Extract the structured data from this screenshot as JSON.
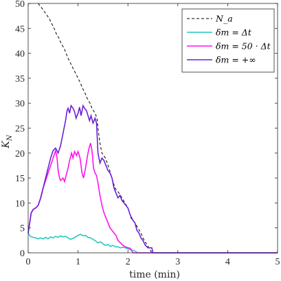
{
  "chart_data": {
    "type": "line",
    "xlabel": "time (min)",
    "ylabel": "K_N",
    "xlim": [
      0,
      5
    ],
    "ylim": [
      0,
      50
    ],
    "x_ticks": [
      "0",
      "1",
      "2",
      "3",
      "4",
      "5"
    ],
    "y_ticks": [
      "0",
      "5",
      "10",
      "15",
      "20",
      "25",
      "30",
      "35",
      "40",
      "45",
      "50"
    ],
    "grid": false,
    "legend_position": "top-right",
    "series": [
      {
        "name": "N_a",
        "legend": "N_a",
        "color": "#000000",
        "style": "dashed",
        "points": [
          [
            0.2,
            50
          ],
          [
            0.28,
            49
          ],
          [
            0.35,
            48
          ],
          [
            0.42,
            47
          ],
          [
            0.47,
            46
          ],
          [
            0.52,
            45
          ],
          [
            0.56,
            44
          ],
          [
            0.62,
            43
          ],
          [
            0.66,
            42
          ],
          [
            0.72,
            41
          ],
          [
            0.76,
            40
          ],
          [
            0.8,
            39
          ],
          [
            0.85,
            38
          ],
          [
            0.9,
            37
          ],
          [
            0.95,
            36
          ],
          [
            1.0,
            35
          ],
          [
            1.05,
            34
          ],
          [
            1.09,
            33
          ],
          [
            1.14,
            32
          ],
          [
            1.18,
            31
          ],
          [
            1.24,
            30
          ],
          [
            1.28,
            29
          ],
          [
            1.34,
            28
          ],
          [
            1.38,
            27
          ],
          [
            1.4,
            25
          ],
          [
            1.44,
            22
          ],
          [
            1.48,
            20
          ],
          [
            1.55,
            19
          ],
          [
            1.62,
            17
          ],
          [
            1.68,
            15
          ],
          [
            1.74,
            13
          ],
          [
            1.82,
            12
          ],
          [
            1.88,
            11
          ],
          [
            1.94,
            10
          ],
          [
            2.0,
            9
          ],
          [
            2.06,
            7
          ],
          [
            2.14,
            6
          ],
          [
            2.2,
            5
          ],
          [
            2.26,
            4
          ],
          [
            2.3,
            3
          ],
          [
            2.36,
            2
          ],
          [
            2.42,
            1
          ],
          [
            2.48,
            0
          ],
          [
            5.0,
            0
          ]
        ]
      },
      {
        "name": "dm=dt",
        "legend": "δm = Δt",
        "color": "#22c9c0",
        "style": "solid",
        "points": [
          [
            0.0,
            4.0
          ],
          [
            0.04,
            3.3
          ],
          [
            0.1,
            3.1
          ],
          [
            0.15,
            3.0
          ],
          [
            0.2,
            2.8
          ],
          [
            0.25,
            3.0
          ],
          [
            0.3,
            2.8
          ],
          [
            0.35,
            3.1
          ],
          [
            0.4,
            2.8
          ],
          [
            0.45,
            3.2
          ],
          [
            0.5,
            3.0
          ],
          [
            0.55,
            3.3
          ],
          [
            0.6,
            3.1
          ],
          [
            0.65,
            3.4
          ],
          [
            0.7,
            3.2
          ],
          [
            0.75,
            3.3
          ],
          [
            0.8,
            3.0
          ],
          [
            0.85,
            2.7
          ],
          [
            0.9,
            2.9
          ],
          [
            0.95,
            3.2
          ],
          [
            1.0,
            3.5
          ],
          [
            1.05,
            3.7
          ],
          [
            1.1,
            3.4
          ],
          [
            1.15,
            3.5
          ],
          [
            1.2,
            3.1
          ],
          [
            1.25,
            3.0
          ],
          [
            1.3,
            2.7
          ],
          [
            1.35,
            2.4
          ],
          [
            1.4,
            2.0
          ],
          [
            1.45,
            2.2
          ],
          [
            1.5,
            1.8
          ],
          [
            1.55,
            1.5
          ],
          [
            1.6,
            1.7
          ],
          [
            1.65,
            1.3
          ],
          [
            1.7,
            1.5
          ],
          [
            1.75,
            1.2
          ],
          [
            1.8,
            1.2
          ],
          [
            1.85,
            1.0
          ],
          [
            1.9,
            1.1
          ],
          [
            1.95,
            1.0
          ],
          [
            2.0,
            0.8
          ],
          [
            2.05,
            0.6
          ],
          [
            2.1,
            0.5
          ],
          [
            2.15,
            0.3
          ],
          [
            2.2,
            0.0
          ],
          [
            5.0,
            0.0
          ]
        ]
      },
      {
        "name": "dm=50dt",
        "legend": "δm = 50 · Δt",
        "color": "#ff10f0",
        "style": "solid",
        "points": [
          [
            0.0,
            4.0
          ],
          [
            0.03,
            6.0
          ],
          [
            0.06,
            8.0
          ],
          [
            0.1,
            8.7
          ],
          [
            0.15,
            9.0
          ],
          [
            0.2,
            9.5
          ],
          [
            0.25,
            11.0
          ],
          [
            0.3,
            13.0
          ],
          [
            0.35,
            14.5
          ],
          [
            0.4,
            16.0
          ],
          [
            0.45,
            17.5
          ],
          [
            0.5,
            19.0
          ],
          [
            0.55,
            20.5
          ],
          [
            0.58,
            19.0
          ],
          [
            0.6,
            16.5
          ],
          [
            0.63,
            15.0
          ],
          [
            0.65,
            14.5
          ],
          [
            0.7,
            15.0
          ],
          [
            0.73,
            14.3
          ],
          [
            0.76,
            15.5
          ],
          [
            0.8,
            17.0
          ],
          [
            0.83,
            18.5
          ],
          [
            0.87,
            20.0
          ],
          [
            0.9,
            19.0
          ],
          [
            0.93,
            20.3
          ],
          [
            0.97,
            19.5
          ],
          [
            1.0,
            20.3
          ],
          [
            1.04,
            19.0
          ],
          [
            1.08,
            16.0
          ],
          [
            1.11,
            15.0
          ],
          [
            1.15,
            17.0
          ],
          [
            1.19,
            19.5
          ],
          [
            1.22,
            21.0
          ],
          [
            1.25,
            22.0
          ],
          [
            1.28,
            20.5
          ],
          [
            1.31,
            17.0
          ],
          [
            1.34,
            16.0
          ],
          [
            1.37,
            15.5
          ],
          [
            1.4,
            14.0
          ],
          [
            1.44,
            11.5
          ],
          [
            1.48,
            9.5
          ],
          [
            1.52,
            8.0
          ],
          [
            1.56,
            7.0
          ],
          [
            1.6,
            6.0
          ],
          [
            1.64,
            5.0
          ],
          [
            1.68,
            4.5
          ],
          [
            1.72,
            4.0
          ],
          [
            1.76,
            3.5
          ],
          [
            1.8,
            2.5
          ],
          [
            1.85,
            2.0
          ],
          [
            1.9,
            1.5
          ],
          [
            1.95,
            1.2
          ],
          [
            2.0,
            1.0
          ],
          [
            2.05,
            0.9
          ],
          [
            2.1,
            0.0
          ],
          [
            5.0,
            0.0
          ]
        ]
      },
      {
        "name": "dm=inf",
        "legend": "δm = +∞",
        "color": "#6a1fd8",
        "style": "solid",
        "points": [
          [
            0.0,
            4.0
          ],
          [
            0.03,
            6.0
          ],
          [
            0.06,
            8.0
          ],
          [
            0.1,
            8.7
          ],
          [
            0.15,
            9.0
          ],
          [
            0.2,
            9.5
          ],
          [
            0.25,
            11.0
          ],
          [
            0.3,
            13.0
          ],
          [
            0.35,
            15.0
          ],
          [
            0.4,
            17.0
          ],
          [
            0.45,
            19.0
          ],
          [
            0.5,
            20.5
          ],
          [
            0.55,
            21.0
          ],
          [
            0.6,
            20.0
          ],
          [
            0.65,
            21.5
          ],
          [
            0.7,
            24.0
          ],
          [
            0.75,
            26.5
          ],
          [
            0.78,
            28.5
          ],
          [
            0.8,
            29.0
          ],
          [
            0.83,
            28.0
          ],
          [
            0.86,
            29.5
          ],
          [
            0.9,
            29.0
          ],
          [
            0.93,
            28.3
          ],
          [
            0.96,
            27.0
          ],
          [
            1.0,
            28.0
          ],
          [
            1.03,
            29.2
          ],
          [
            1.06,
            27.5
          ],
          [
            1.1,
            29.5
          ],
          [
            1.13,
            29.0
          ],
          [
            1.17,
            28.5
          ],
          [
            1.2,
            27.5
          ],
          [
            1.23,
            26.5
          ],
          [
            1.26,
            27.5
          ],
          [
            1.3,
            26.0
          ],
          [
            1.34,
            27.0
          ],
          [
            1.37,
            26.0
          ],
          [
            1.4,
            20.0
          ],
          [
            1.44,
            18.0
          ],
          [
            1.48,
            19.0
          ],
          [
            1.52,
            18.5
          ],
          [
            1.56,
            17.5
          ],
          [
            1.6,
            16.5
          ],
          [
            1.64,
            16.0
          ],
          [
            1.68,
            15.0
          ],
          [
            1.72,
            13.0
          ],
          [
            1.76,
            12.0
          ],
          [
            1.8,
            11.0
          ],
          [
            1.84,
            11.5
          ],
          [
            1.88,
            10.5
          ],
          [
            1.92,
            10.0
          ],
          [
            1.96,
            9.5
          ],
          [
            2.0,
            9.0
          ],
          [
            2.05,
            7.5
          ],
          [
            2.1,
            6.5
          ],
          [
            2.14,
            6.0
          ],
          [
            2.18,
            4.5
          ],
          [
            2.22,
            4.0
          ],
          [
            2.26,
            3.0
          ],
          [
            2.3,
            2.5
          ],
          [
            2.35,
            1.5
          ],
          [
            2.4,
            1.0
          ],
          [
            2.48,
            1.0
          ],
          [
            2.5,
            0.0
          ],
          [
            5.0,
            0.0
          ]
        ]
      }
    ]
  }
}
